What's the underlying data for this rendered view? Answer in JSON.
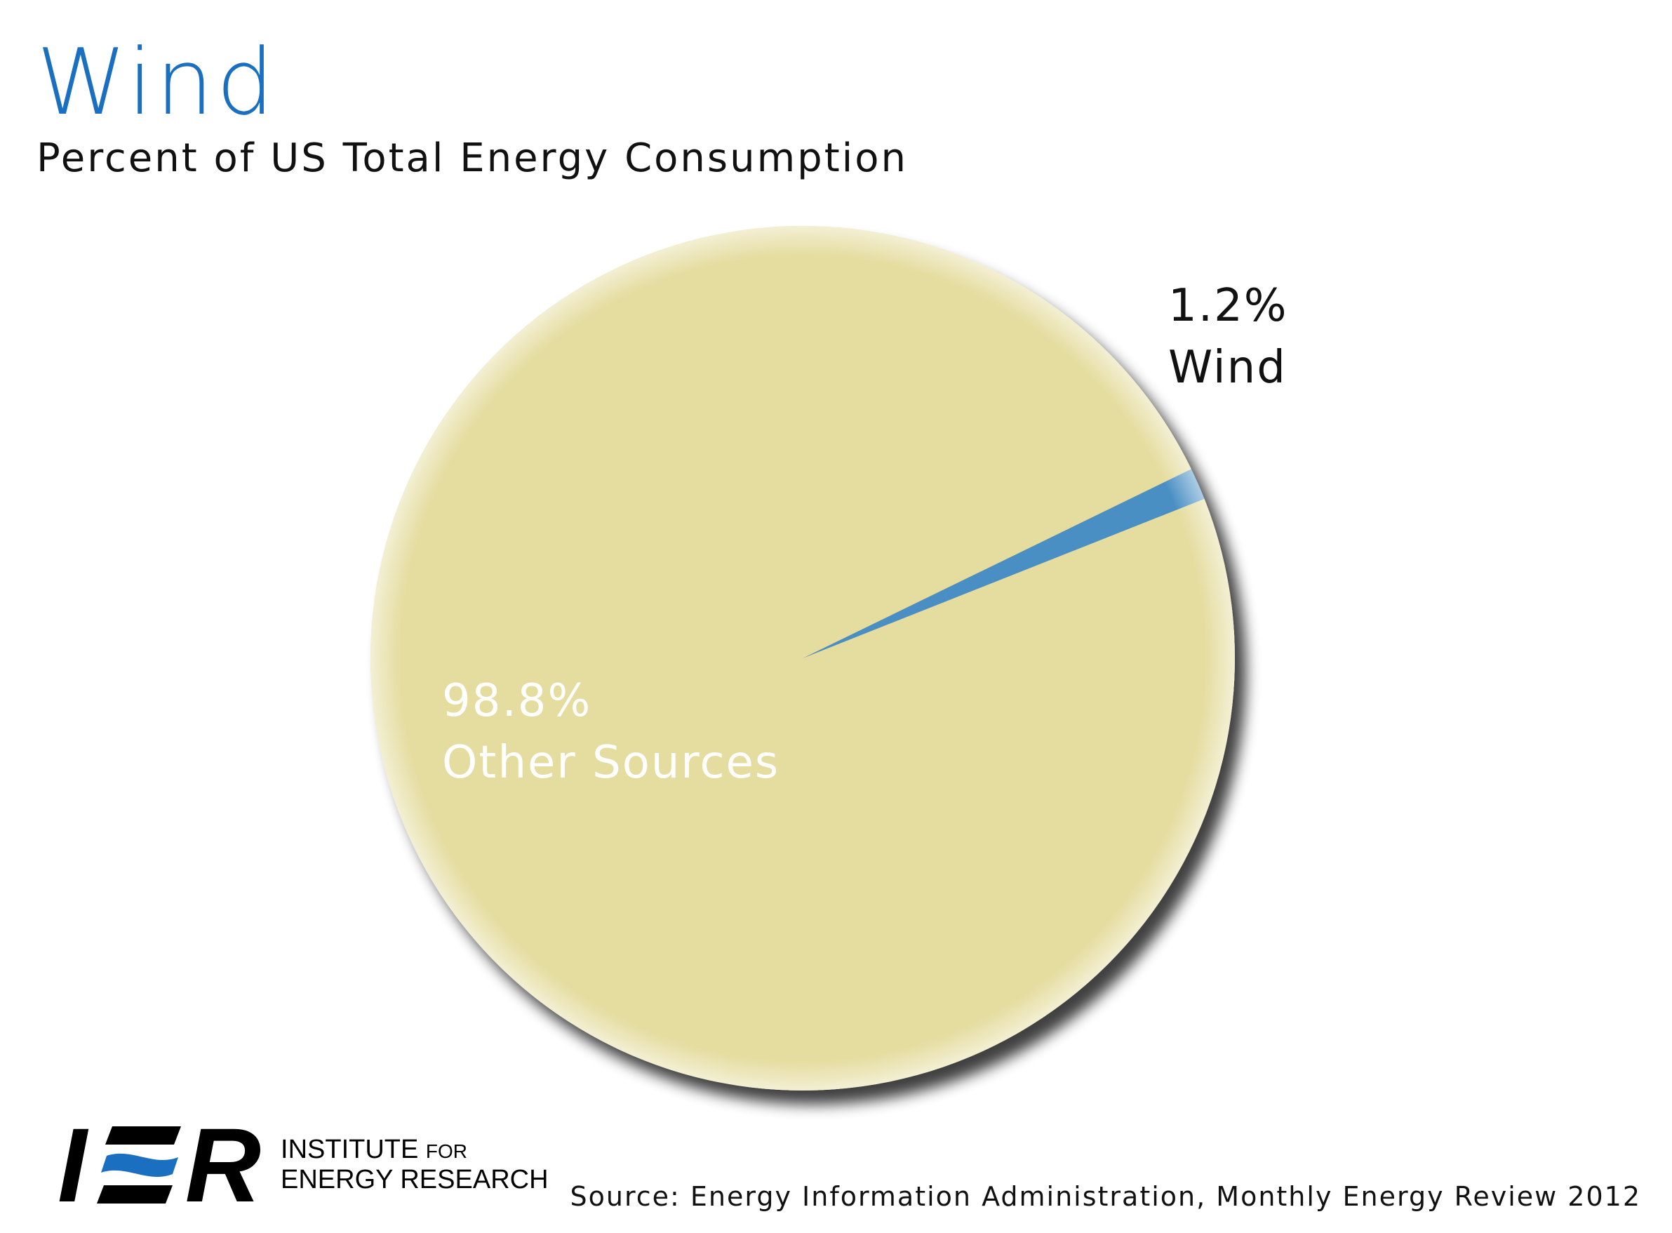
{
  "chart_data": {
    "type": "pie",
    "title": "Wind",
    "subtitle": "Percent of US Total Energy Consumption",
    "slices": [
      {
        "name": "Wind",
        "value": 1.2,
        "label": "1.2%",
        "color": "#4a8fc4"
      },
      {
        "name": "Other Sources",
        "value": 98.8,
        "label": "98.8%",
        "color": "#e5dc9f"
      }
    ],
    "legend": "none"
  },
  "source": "Source: Energy Information Administration, Monthly Energy Review 2012",
  "logo": {
    "mark": "IER",
    "line1": "INSTITUTE",
    "line1_small": "FOR",
    "line2": "ENERGY RESEARCH",
    "colors": {
      "mark": "#000000",
      "accent": "#1a6fc1"
    }
  },
  "colors": {
    "title": "#1a6fc1",
    "background": "#ffffff"
  }
}
